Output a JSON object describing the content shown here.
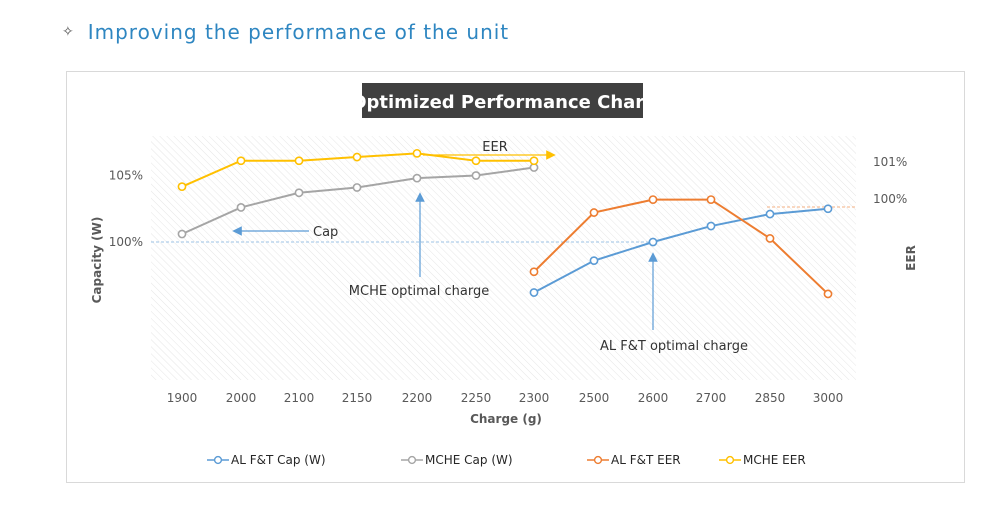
{
  "heading": {
    "bullet": "✧",
    "text": "Improving the performance of the unit"
  },
  "chart_data": {
    "type": "line",
    "title": "Optimized Performance Chart",
    "xlabel": "Charge (g)",
    "ylabel_left": "Capacity  (W)",
    "ylabel_right": "EER",
    "categories": [
      "1900",
      "2000",
      "2100",
      "2150",
      "2200",
      "2250",
      "2300",
      "2500",
      "2600",
      "2700",
      "2850",
      "3000"
    ],
    "left_ticks": [
      {
        "label": "105%",
        "value": 105
      },
      {
        "label": "100%",
        "value": 100
      }
    ],
    "right_ticks": [
      {
        "label": "101%",
        "value": 101
      },
      {
        "label": "100%",
        "value": 100
      }
    ],
    "grid": false,
    "background_hatch": true,
    "legend_position": "bottom",
    "series": [
      {
        "name": "AL F&T Cap (W)",
        "color": "#5b9bd5",
        "axis": "left",
        "x": [
          "2300",
          "2500",
          "2600",
          "2700",
          "2850",
          "3000"
        ],
        "values": [
          96.2,
          98.6,
          100.0,
          101.2,
          102.1,
          102.5
        ]
      },
      {
        "name": "MCHE Cap (W)",
        "color": "#a5a5a5",
        "axis": "left",
        "x": [
          "1900",
          "2000",
          "2100",
          "2150",
          "2200",
          "2250",
          "2300"
        ],
        "values": [
          100.6,
          102.6,
          103.7,
          104.1,
          104.8,
          105.0,
          105.6
        ]
      },
      {
        "name": "AL F&T EER",
        "color": "#ed7d31",
        "axis": "right",
        "x": [
          "2300",
          "2500",
          "2600",
          "2700",
          "2850",
          "3000"
        ],
        "values": [
          98.25,
          99.85,
          100.2,
          100.2,
          99.15,
          97.65
        ]
      },
      {
        "name": "MCHE  EER",
        "color": "#ffc000",
        "axis": "right",
        "x": [
          "1900",
          "2000",
          "2100",
          "2150",
          "2200",
          "2250",
          "2300"
        ],
        "values": [
          100.55,
          101.25,
          101.25,
          101.35,
          101.45,
          101.25,
          101.25
        ]
      }
    ],
    "annotations": [
      {
        "id": "eer",
        "text": "EER"
      },
      {
        "id": "cap",
        "text": "Cap"
      },
      {
        "id": "mche_opt",
        "text": "MCHE optimal charge"
      },
      {
        "id": "alft_opt",
        "text": "AL F&T optimal charge"
      }
    ],
    "colors": {
      "title_bg": "#404040",
      "title_fg": "#ffffff",
      "axis_text": "#595959",
      "ref_blue": "#9dc3e6",
      "ref_orange": "#f4b183",
      "arrow_blue": "#5b9bd5",
      "arrow_yellow": "#ffc000"
    }
  }
}
